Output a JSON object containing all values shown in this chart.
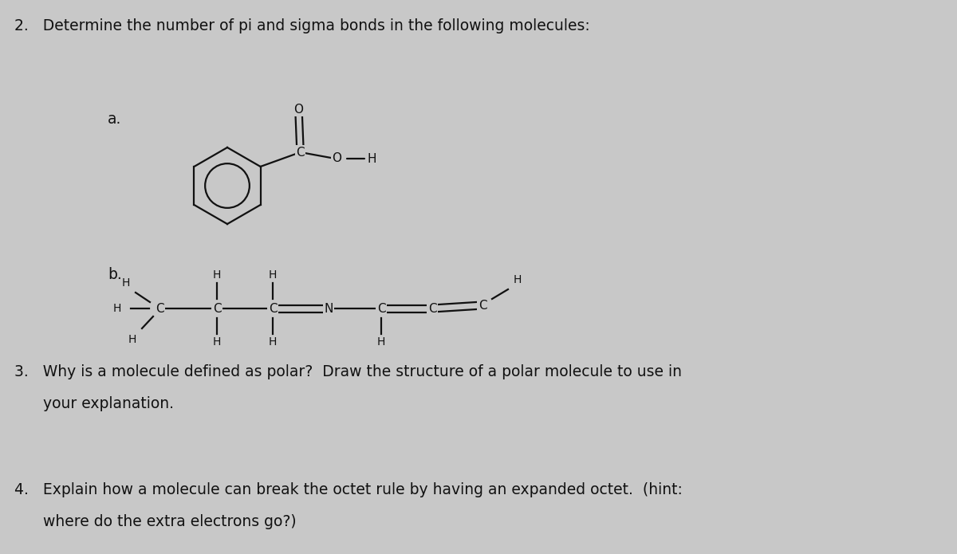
{
  "background_color": "#c8c8c8",
  "title_text": "2.   Determine the number of pi and sigma bonds in the following molecules:",
  "text_fontsize": 13.5,
  "text_color": "#111111",
  "q3_line1": "3.   Why is a molecule defined as polar?  Draw the structure of a polar molecule to use in",
  "q3_line2": "      your explanation.",
  "q4_line1": "4.   Explain how a molecule can break the octet rule by having an expanded octet.  (hint:",
  "q4_line2": "      where do the extra electrons go?)",
  "lw": 1.6,
  "lc": "#111111"
}
